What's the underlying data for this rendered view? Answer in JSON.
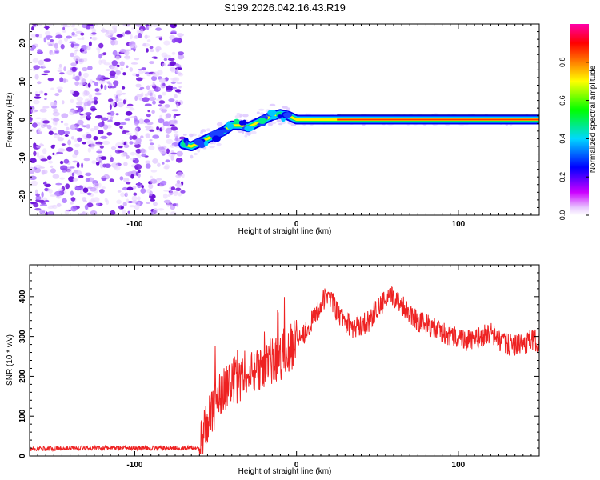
{
  "title": "S199.2026.042.16.43.R19",
  "chart_data": [
    {
      "type": "heatmap",
      "panel": "top",
      "xlabel": "Height of straight line (km)",
      "ylabel": "Frequency (Hz)",
      "xlim": [
        -165,
        150
      ],
      "ylim": [
        -25,
        25
      ],
      "xticks": [
        -100,
        0,
        100
      ],
      "yticks": [
        -20,
        -10,
        0,
        10,
        20
      ],
      "noise_region_x": [
        -165,
        -70
      ],
      "ridge": {
        "x": [
          -70,
          -65,
          -60,
          -55,
          -50,
          -45,
          -40,
          -35,
          -30,
          -25,
          -20,
          -15,
          -10,
          -5,
          0,
          10,
          20,
          25,
          150
        ],
        "y": [
          -6.5,
          -7,
          -6,
          -5,
          -4,
          -3,
          -1.5,
          -1.5,
          -2,
          -1,
          0,
          1,
          1.5,
          1,
          0,
          0,
          0,
          0,
          0
        ]
      },
      "colorbar": {
        "label": "Normalized spectral amplitude",
        "range": [
          0,
          1
        ],
        "ticks": [
          "0.0",
          "0.2",
          "0.4",
          "0.6",
          "0.8"
        ],
        "colors": [
          "#ffffff",
          "#cc00ff",
          "#0000ff",
          "#00d8ff",
          "#00ff00",
          "#ffff00",
          "#ff6600",
          "#ff0000",
          "#ff00aa"
        ]
      }
    },
    {
      "type": "line",
      "panel": "bottom",
      "xlabel": "Height of straight line (km)",
      "ylabel": "SNR (10 * v/v)",
      "xlim": [
        -165,
        150
      ],
      "ylim": [
        0,
        480
      ],
      "xticks": [
        -100,
        0,
        100
      ],
      "yticks": [
        0,
        100,
        200,
        300,
        400
      ],
      "line_color": "#ee2222",
      "series": [
        {
          "name": "SNR",
          "x": [
            -165,
            -140,
            -110,
            -90,
            -70,
            -60,
            -55,
            -50,
            -45,
            -40,
            -35,
            -30,
            -25,
            -20,
            -15,
            -10,
            -5,
            0,
            5,
            10,
            15,
            20,
            25,
            30,
            35,
            40,
            45,
            50,
            55,
            60,
            65,
            70,
            75,
            80,
            85,
            90,
            95,
            100,
            105,
            110,
            115,
            120,
            125,
            130,
            135,
            140,
            145,
            150
          ],
          "y": [
            18,
            20,
            20,
            20,
            20,
            20,
            90,
            130,
            170,
            190,
            190,
            200,
            220,
            230,
            240,
            250,
            260,
            300,
            310,
            340,
            380,
            410,
            360,
            340,
            320,
            330,
            340,
            370,
            390,
            400,
            380,
            360,
            340,
            330,
            320,
            310,
            300,
            300,
            290,
            290,
            300,
            310,
            290,
            280,
            280,
            280,
            290,
            290
          ]
        }
      ]
    }
  ]
}
